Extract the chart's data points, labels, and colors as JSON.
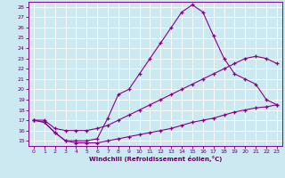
{
  "xlabel": "Windchill (Refroidissement éolien,°C)",
  "background_color": "#cce8f0",
  "line_color": "#880088",
  "grid_color": "#ffffff",
  "xlim": [
    -0.5,
    23.5
  ],
  "ylim": [
    14.5,
    28.5
  ],
  "xticks": [
    0,
    1,
    2,
    3,
    4,
    5,
    6,
    7,
    8,
    9,
    10,
    11,
    12,
    13,
    14,
    15,
    16,
    17,
    18,
    19,
    20,
    21,
    22,
    23
  ],
  "yticks": [
    15,
    16,
    17,
    18,
    19,
    20,
    21,
    22,
    23,
    24,
    25,
    26,
    27,
    28
  ],
  "line1_x": [
    0,
    1,
    2,
    3,
    4,
    5,
    6,
    7,
    8,
    9,
    10,
    11,
    12,
    13,
    14,
    15,
    16,
    17,
    18,
    19,
    20,
    21,
    22,
    23
  ],
  "line1_y": [
    17.0,
    16.8,
    15.8,
    15.0,
    15.0,
    15.0,
    15.2,
    17.2,
    19.5,
    20.0,
    21.5,
    23.0,
    24.5,
    26.0,
    27.5,
    28.2,
    27.5,
    25.2,
    23.0,
    21.5,
    21.0,
    20.5,
    19.0,
    18.5
  ],
  "line2_x": [
    0,
    1,
    2,
    3,
    4,
    5,
    6,
    7,
    8,
    9,
    10,
    11,
    12,
    13,
    14,
    15,
    16,
    17,
    18,
    19,
    20,
    21,
    22,
    23
  ],
  "line2_y": [
    17.0,
    17.0,
    16.2,
    16.0,
    16.0,
    16.0,
    16.2,
    16.5,
    17.0,
    17.5,
    18.0,
    18.5,
    19.0,
    19.5,
    20.0,
    20.5,
    21.0,
    21.5,
    22.0,
    22.5,
    23.0,
    23.2,
    23.0,
    22.5
  ],
  "line3_x": [
    0,
    1,
    2,
    3,
    4,
    5,
    6,
    7,
    8,
    9,
    10,
    11,
    12,
    13,
    14,
    15,
    16,
    17,
    18,
    19,
    20,
    21,
    22,
    23
  ],
  "line3_y": [
    17.0,
    16.8,
    15.8,
    15.0,
    14.8,
    14.8,
    14.8,
    15.0,
    15.2,
    15.4,
    15.6,
    15.8,
    16.0,
    16.2,
    16.5,
    16.8,
    17.0,
    17.2,
    17.5,
    17.8,
    18.0,
    18.2,
    18.3,
    18.5
  ]
}
